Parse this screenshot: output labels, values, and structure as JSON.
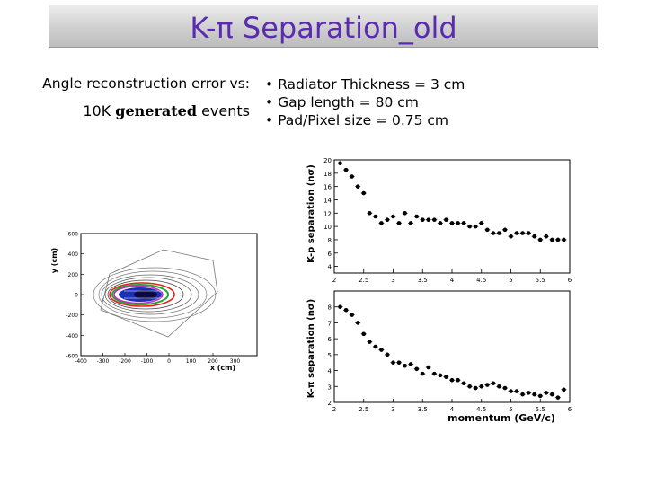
{
  "title": "K-π Separation_old",
  "left": {
    "line1": "Angle reconstruction error vs:",
    "line2_pre": "10K ",
    "line2_bold": "generated",
    "line2_post": " events"
  },
  "bullets": [
    "• Radiator Thickness = 3 cm",
    "• Gap length = 80 cm",
    "• Pad/Pixel size = 0.75 cm"
  ],
  "chart_data": [
    {
      "type": "contour",
      "title": "",
      "xlabel": "x (cm)",
      "ylabel": "y (cm)",
      "xlim": [
        -400,
        400
      ],
      "ylim": [
        -600,
        600
      ],
      "xticks": [
        "-400",
        "-300",
        "-200",
        "-100",
        "0",
        "100",
        "200",
        "300"
      ],
      "yticks": [
        "600",
        "400",
        "200",
        "0",
        "-200",
        "-400",
        "-600"
      ]
    },
    {
      "type": "scatter",
      "ylabel": "K-p separation (nσ)",
      "xlim": [
        2,
        6
      ],
      "ylim": [
        3,
        20
      ],
      "xticks": [
        "2",
        "2.5",
        "3",
        "3.5",
        "4",
        "4.5",
        "5",
        "5.5",
        "6"
      ],
      "yticks": [
        "20",
        "18",
        "16",
        "14",
        "12",
        "10",
        "8",
        "6",
        "4"
      ],
      "x": [
        2.1,
        2.2,
        2.3,
        2.4,
        2.5,
        2.6,
        2.7,
        2.8,
        2.9,
        3.0,
        3.1,
        3.2,
        3.3,
        3.4,
        3.5,
        3.6,
        3.7,
        3.8,
        3.9,
        4.0,
        4.1,
        4.2,
        4.3,
        4.4,
        4.5,
        4.6,
        4.7,
        4.8,
        4.9,
        5.0,
        5.1,
        5.2,
        5.3,
        5.4,
        5.5,
        5.6,
        5.7,
        5.8,
        5.9
      ],
      "y": [
        19.5,
        18.5,
        17.5,
        16,
        15,
        12,
        11.5,
        10.5,
        11,
        11.5,
        10.5,
        12,
        10.5,
        11.5,
        11,
        11,
        11,
        10.5,
        11,
        10.5,
        10.5,
        10.5,
        10,
        10,
        10.5,
        9.5,
        9,
        9,
        9.5,
        8.5,
        9,
        9,
        9,
        8.5,
        8,
        8.5,
        8,
        8,
        8
      ]
    },
    {
      "type": "scatter",
      "ylabel": "K-π separation (nσ)",
      "xlabel": "momentum (GeV/c)",
      "xlim": [
        2,
        6
      ],
      "ylim": [
        2,
        9
      ],
      "xticks": [
        "2",
        "2.5",
        "3",
        "3.5",
        "4",
        "4.5",
        "5",
        "5.5",
        "6"
      ],
      "yticks": [
        "8",
        "7",
        "6",
        "5",
        "4",
        "3",
        "2"
      ],
      "x": [
        2.1,
        2.2,
        2.3,
        2.4,
        2.5,
        2.6,
        2.7,
        2.8,
        2.9,
        3.0,
        3.1,
        3.2,
        3.3,
        3.4,
        3.5,
        3.6,
        3.7,
        3.8,
        3.9,
        4.0,
        4.1,
        4.2,
        4.3,
        4.4,
        4.5,
        4.6,
        4.7,
        4.8,
        4.9,
        5.0,
        5.1,
        5.2,
        5.3,
        5.4,
        5.5,
        5.6,
        5.7,
        5.8,
        5.9
      ],
      "y": [
        8,
        7.8,
        7.5,
        7,
        6.3,
        5.8,
        5.5,
        5.3,
        5,
        4.5,
        4.5,
        4.3,
        4.4,
        4.1,
        3.8,
        4.2,
        3.8,
        3.7,
        3.6,
        3.4,
        3.4,
        3.2,
        3,
        2.9,
        3,
        3.1,
        3.2,
        3.0,
        2.9,
        2.7,
        2.7,
        2.5,
        2.6,
        2.5,
        2.4,
        2.6,
        2.5,
        2.3,
        2.8
      ]
    }
  ]
}
